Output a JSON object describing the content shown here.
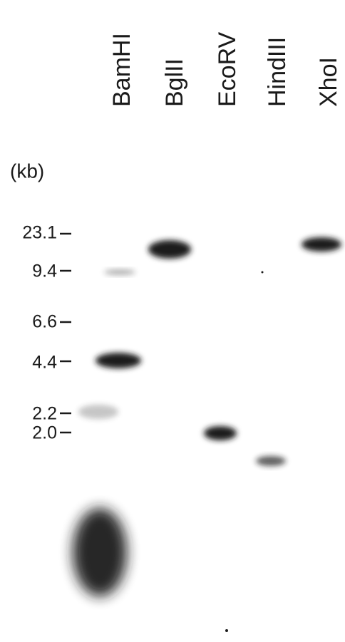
{
  "lanes": [
    "BamHI",
    "BglII",
    "EcoRV",
    "HindIII",
    "XhoI"
  ],
  "unit": "(kb)",
  "markers": [
    "23.1",
    "9.4",
    "6.6",
    "4.4",
    "2.2",
    "2.0"
  ]
}
